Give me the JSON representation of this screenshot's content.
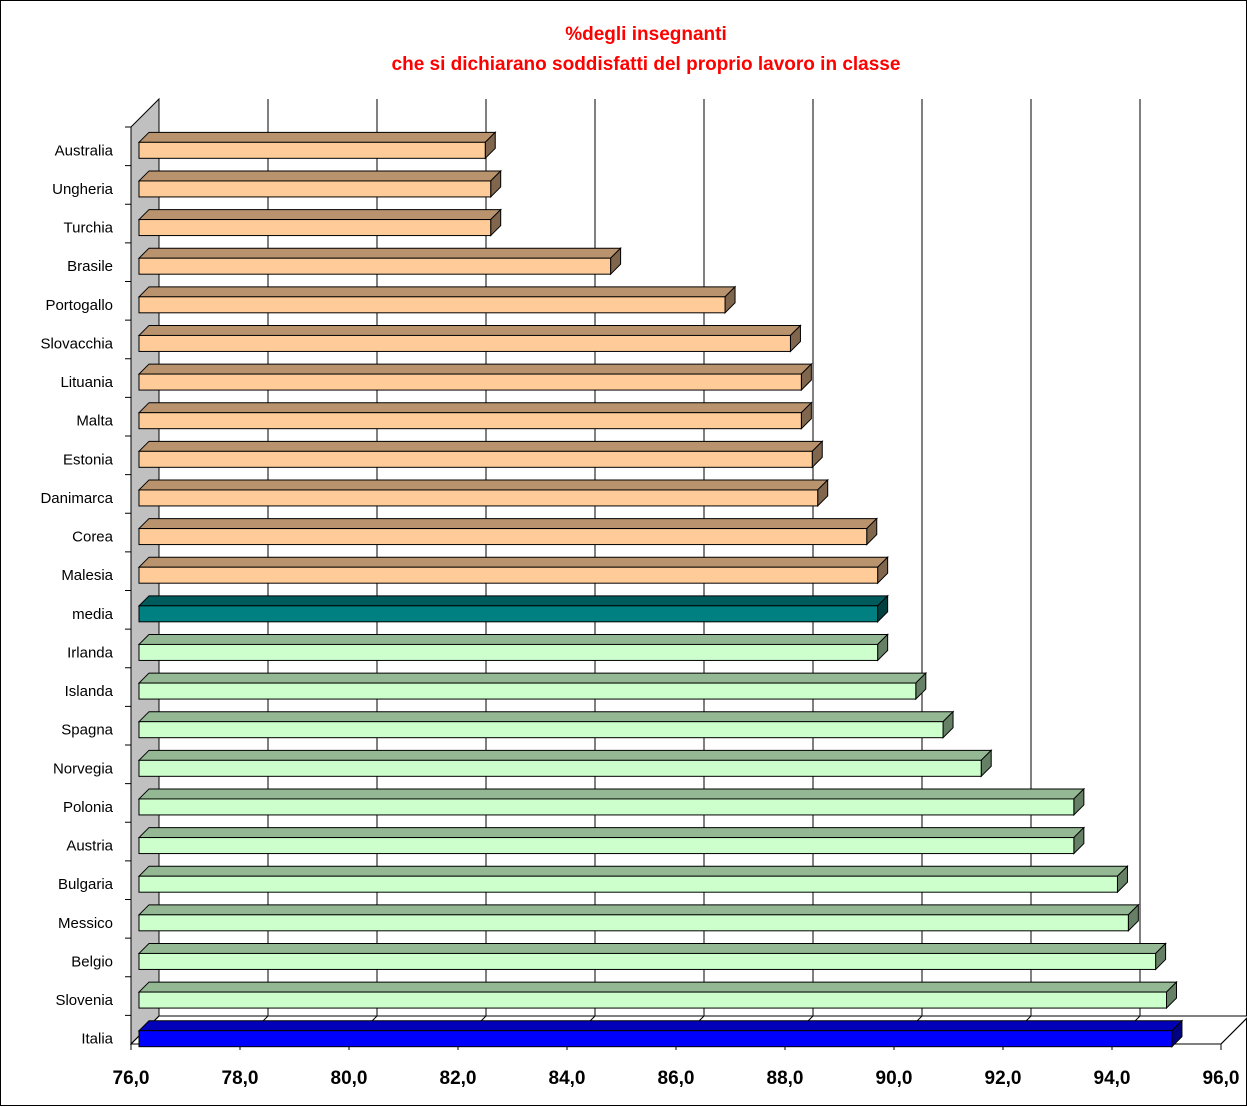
{
  "chart_data": {
    "type": "bar",
    "orientation": "horizontal",
    "title": [
      "%degli insegnanti",
      "che si dichiarano soddisfatti del proprio lavoro in classe"
    ],
    "title_color": "#ff0000",
    "categories": [
      "Australia",
      "Ungheria",
      "Turchia",
      "Brasile",
      "Portogallo",
      "Slovacchia",
      "Lituania",
      "Malta",
      "Estonia",
      "Danimarca",
      "Corea",
      "Malesia",
      "media",
      "Irlanda",
      "Islanda",
      "Spagna",
      "Norvegia",
      "Polonia",
      "Austria",
      "Bulgaria",
      "Messico",
      "Belgio",
      "Slovenia",
      "Italia"
    ],
    "values": [
      82.5,
      82.6,
      82.6,
      84.8,
      86.9,
      88.1,
      88.3,
      88.3,
      88.5,
      88.6,
      89.5,
      89.7,
      89.7,
      89.7,
      90.4,
      90.9,
      91.6,
      93.3,
      93.3,
      94.1,
      94.3,
      94.8,
      95.0,
      95.1
    ],
    "bar_colors": [
      "#ffcc99",
      "#ffcc99",
      "#ffcc99",
      "#ffcc99",
      "#ffcc99",
      "#ffcc99",
      "#ffcc99",
      "#ffcc99",
      "#ffcc99",
      "#ffcc99",
      "#ffcc99",
      "#ffcc99",
      "#008080",
      "#ccffcc",
      "#ccffcc",
      "#ccffcc",
      "#ccffcc",
      "#ccffcc",
      "#ccffcc",
      "#ccffcc",
      "#ccffcc",
      "#ccffcc",
      "#ccffcc",
      "#0000ff"
    ],
    "xlim": [
      76,
      96
    ],
    "xticks": [
      "76,0",
      "78,0",
      "80,0",
      "82,0",
      "84,0",
      "86,0",
      "88,0",
      "90,0",
      "92,0",
      "94,0",
      "96,0"
    ],
    "xlabel": "",
    "ylabel": "",
    "grid": true,
    "style": "3d",
    "legend": "none"
  }
}
